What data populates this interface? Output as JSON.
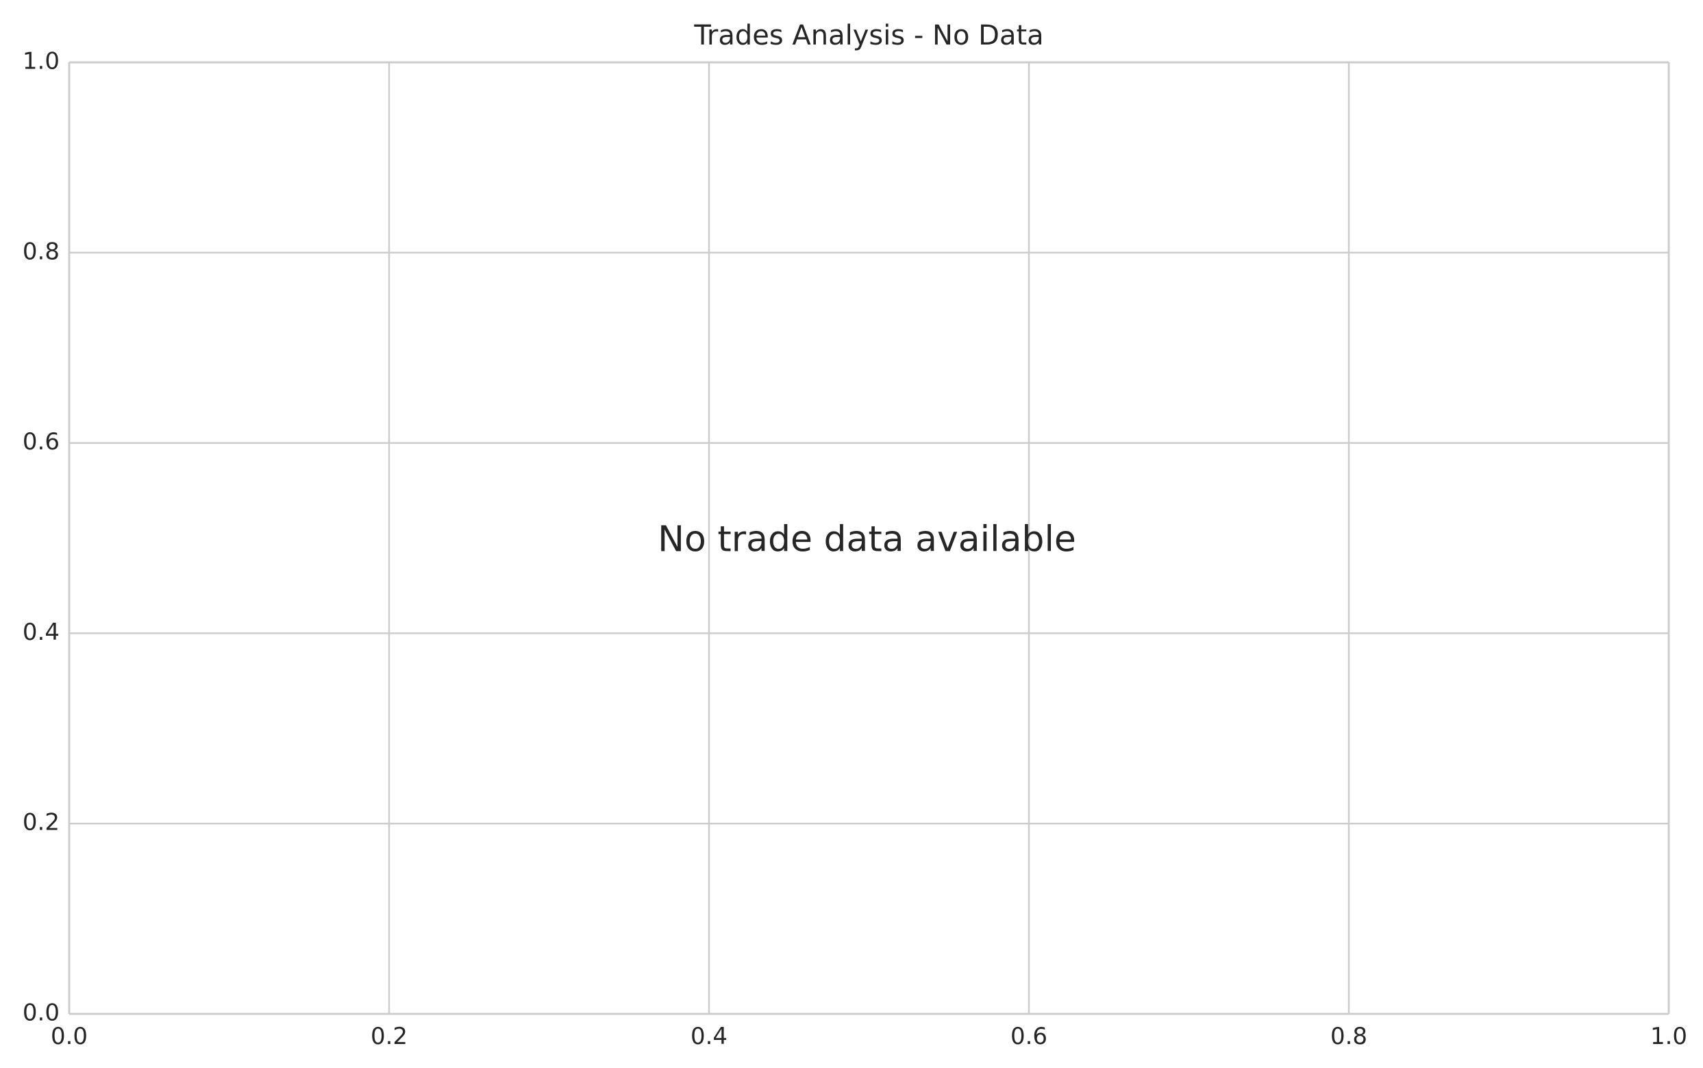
{
  "chart_data": {
    "type": "line",
    "title": "Trades Analysis - No Data",
    "xlabel": "",
    "ylabel": "",
    "xlim": [
      0.0,
      1.0
    ],
    "ylim": [
      0.0,
      1.0
    ],
    "x_ticks": [
      {
        "value": 0.0,
        "label": "0.0"
      },
      {
        "value": 0.2,
        "label": "0.2"
      },
      {
        "value": 0.4,
        "label": "0.4"
      },
      {
        "value": 0.6,
        "label": "0.6"
      },
      {
        "value": 0.8,
        "label": "0.8"
      },
      {
        "value": 1.0,
        "label": "1.0"
      }
    ],
    "y_ticks": [
      {
        "value": 0.0,
        "label": "0.0"
      },
      {
        "value": 0.2,
        "label": "0.2"
      },
      {
        "value": 0.4,
        "label": "0.4"
      },
      {
        "value": 0.6,
        "label": "0.6"
      },
      {
        "value": 0.8,
        "label": "0.8"
      },
      {
        "value": 1.0,
        "label": "1.0"
      }
    ],
    "grid": true,
    "series": [],
    "annotations": [
      {
        "text": "No trade data available",
        "x": 0.5,
        "y": 0.5
      }
    ]
  },
  "colors": {
    "grid": "#cccccc",
    "spine": "#cccccc",
    "text": "#262626",
    "background": "#ffffff"
  }
}
